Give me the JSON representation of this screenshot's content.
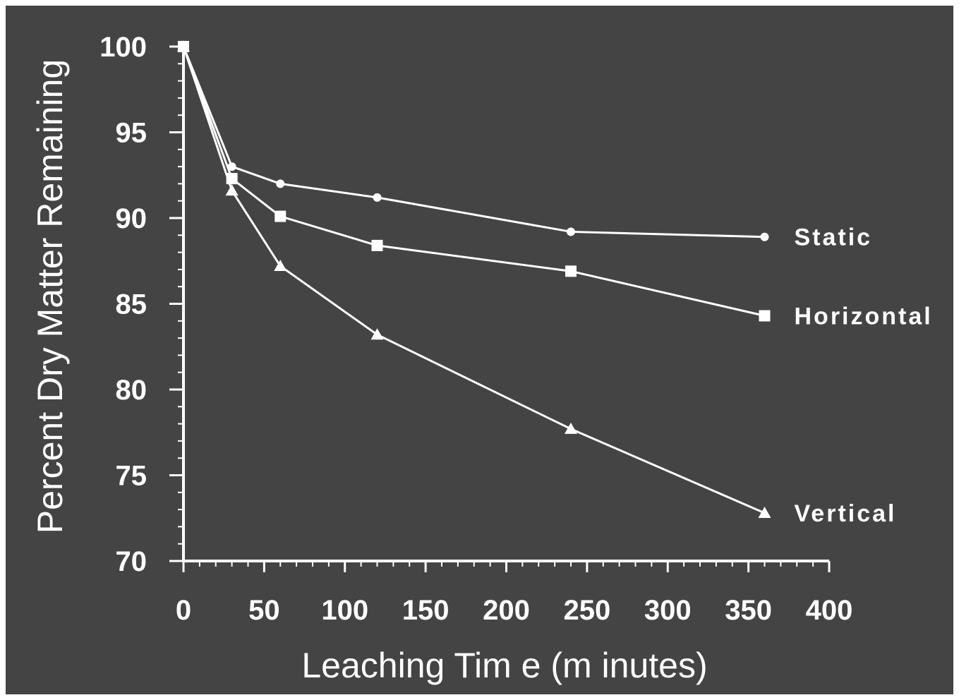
{
  "chart_data": {
    "type": "line",
    "xlabel": "Leaching Tim e (m inutes)",
    "ylabel": "Percent Dry Matter Remaining",
    "xlim": [
      0,
      400
    ],
    "ylim": [
      70,
      100
    ],
    "xticks": [
      "0",
      "50",
      "100",
      "150",
      "200",
      "250",
      "300",
      "350",
      "400"
    ],
    "yticks": [
      "70",
      "75",
      "80",
      "85",
      "90",
      "95",
      "100"
    ],
    "x": [
      0,
      30,
      60,
      120,
      240,
      360
    ],
    "series": [
      {
        "name": "Static",
        "marker": "circle",
        "values": [
          100,
          93.0,
          92.0,
          91.2,
          89.2,
          88.9
        ]
      },
      {
        "name": "Horizontal",
        "marker": "square",
        "values": [
          100,
          92.3,
          90.1,
          88.4,
          86.9,
          84.3
        ]
      },
      {
        "name": "Vertical",
        "marker": "triangle",
        "values": [
          100,
          91.6,
          87.2,
          83.2,
          77.7,
          72.8
        ]
      }
    ],
    "grid": false,
    "legend": "series labels at line ends (right)",
    "colors": {
      "background": "#444444",
      "foreground": "#ffffff"
    }
  }
}
